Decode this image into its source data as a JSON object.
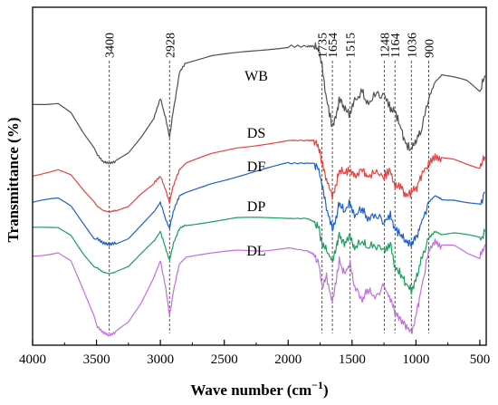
{
  "chart_data": {
    "type": "line",
    "title": "",
    "xlabel": "Wave number (cm⁻¹)",
    "xlabel_main": "Wave number (cm",
    "xlabel_sup": "−1",
    "xlabel_close": ")",
    "ylabel": "Transmittance (%)",
    "xlim": [
      4000,
      450
    ],
    "x_reversed": true,
    "y_ticks_shown": false,
    "grid": false,
    "legend": "inline labels",
    "x_ticks": [
      4000,
      3500,
      3000,
      2500,
      2000,
      1500,
      1000,
      500
    ],
    "x_tick_labels": [
      "4000",
      "3500",
      "3000",
      "2500",
      "2000",
      "1500",
      "1000",
      "500"
    ],
    "peak_markers": [
      {
        "x": 3400,
        "label": "3400"
      },
      {
        "x": 2928,
        "label": "2928"
      },
      {
        "x": 1735,
        "label": "1735"
      },
      {
        "x": 1654,
        "label": "1654"
      },
      {
        "x": 1515,
        "label": "1515"
      },
      {
        "x": 1248,
        "label": "1248"
      },
      {
        "x": 1164,
        "label": "1164"
      },
      {
        "x": 1036,
        "label": "1036"
      },
      {
        "x": 900,
        "label": "900"
      }
    ],
    "series": [
      {
        "name": "WB",
        "color": "#505050",
        "x": [
          4000,
          3800,
          3700,
          3600,
          3500,
          3450,
          3400,
          3350,
          3250,
          3150,
          3050,
          3000,
          2960,
          2928,
          2900,
          2870,
          2850,
          2800,
          2600,
          2400,
          2200,
          2000,
          1850,
          1800,
          1760,
          1735,
          1700,
          1654,
          1620,
          1600,
          1560,
          1515,
          1480,
          1420,
          1380,
          1320,
          1248,
          1200,
          1164,
          1120,
          1080,
          1036,
          1000,
          960,
          900,
          850,
          800,
          700,
          600,
          500,
          460
        ],
        "y": [
          70,
          71,
          68,
          61,
          55,
          52.5,
          52,
          52.5,
          55,
          60,
          66,
          72,
          66,
          60,
          68,
          75,
          80,
          83,
          85,
          86,
          87,
          88,
          88,
          88,
          87,
          82,
          72,
          63,
          67,
          72,
          69,
          67,
          71,
          74,
          70,
          73,
          73,
          69,
          68,
          63,
          58,
          56,
          59,
          62,
          72,
          77,
          79,
          78,
          77,
          74,
          79
        ]
      },
      {
        "name": "DS",
        "color": "#e5413f",
        "x": [
          4000,
          3800,
          3700,
          3600,
          3500,
          3450,
          3400,
          3350,
          3250,
          3150,
          3050,
          3000,
          2960,
          2928,
          2900,
          2870,
          2850,
          2800,
          2600,
          2400,
          2200,
          2000,
          1850,
          1800,
          1760,
          1735,
          1700,
          1654,
          1620,
          1600,
          1560,
          1515,
          1480,
          1420,
          1380,
          1320,
          1248,
          1200,
          1164,
          1120,
          1080,
          1036,
          1000,
          960,
          900,
          850,
          800,
          700,
          600,
          500,
          460
        ],
        "y": [
          49,
          50,
          48,
          43,
          39,
          37.5,
          37,
          37.5,
          39,
          43,
          46,
          48,
          44,
          40,
          45,
          48,
          50,
          52,
          55,
          57,
          58,
          59,
          59,
          59,
          57,
          52,
          47,
          42,
          46,
          50,
          49,
          50,
          48,
          50,
          48,
          49,
          48,
          50,
          45,
          45,
          42,
          43,
          44,
          48,
          52,
          54,
          53,
          53,
          52,
          51,
          54
        ]
      },
      {
        "name": "DF",
        "color": "#1f5fc9",
        "x": [
          4000,
          3800,
          3700,
          3600,
          3500,
          3450,
          3400,
          3350,
          3250,
          3150,
          3050,
          3000,
          2960,
          2928,
          2900,
          2870,
          2850,
          2800,
          2600,
          2400,
          2200,
          2000,
          1850,
          1800,
          1760,
          1735,
          1700,
          1654,
          1620,
          1600,
          1560,
          1515,
          1480,
          1420,
          1380,
          1320,
          1248,
          1200,
          1164,
          1120,
          1080,
          1036,
          1000,
          960,
          900,
          850,
          800,
          700,
          600,
          500,
          460
        ],
        "y": [
          40,
          41,
          39,
          34,
          29,
          27.5,
          27,
          27.5,
          29,
          33,
          37,
          40,
          35,
          32,
          37,
          40,
          42,
          43,
          46,
          48,
          50,
          52,
          52,
          52,
          50,
          45,
          38,
          32,
          36,
          40,
          37,
          40,
          36,
          38,
          35,
          36,
          34,
          36,
          32,
          30,
          28,
          27,
          29,
          33,
          40,
          42,
          41,
          41,
          40,
          39,
          43
        ]
      },
      {
        "name": "DP",
        "color": "#18a05a",
        "x": [
          4000,
          3800,
          3700,
          3600,
          3500,
          3450,
          3400,
          3350,
          3250,
          3150,
          3050,
          3000,
          2960,
          2928,
          2900,
          2870,
          2850,
          2800,
          2600,
          2400,
          2200,
          2000,
          1850,
          1800,
          1760,
          1735,
          1700,
          1654,
          1620,
          1600,
          1560,
          1515,
          1480,
          1420,
          1380,
          1320,
          1248,
          1200,
          1164,
          1120,
          1080,
          1036,
          1000,
          960,
          900,
          850,
          800,
          700,
          600,
          500,
          460
        ],
        "y": [
          32,
          33,
          31,
          25,
          20,
          18.5,
          18,
          18.5,
          20,
          24,
          28,
          31,
          26,
          22,
          27,
          30,
          32,
          33,
          34,
          35,
          35,
          35,
          35,
          34,
          32,
          27,
          25,
          22,
          27,
          30,
          27,
          30,
          26,
          28,
          26,
          27,
          25,
          27,
          20,
          18,
          15,
          13,
          16,
          22,
          29,
          31,
          30,
          30,
          29,
          28,
          31
        ]
      },
      {
        "name": "DL",
        "color": "#c46fe0",
        "x": [
          4000,
          3800,
          3700,
          3600,
          3500,
          3450,
          3400,
          3350,
          3250,
          3150,
          3050,
          3000,
          2960,
          2928,
          2900,
          2870,
          2850,
          2800,
          2600,
          2400,
          2200,
          2000,
          1850,
          1800,
          1760,
          1735,
          1700,
          1654,
          1620,
          1600,
          1560,
          1515,
          1480,
          1420,
          1380,
          1320,
          1248,
          1200,
          1164,
          1120,
          1080,
          1036,
          1000,
          960,
          900,
          850,
          800,
          700,
          600,
          500,
          460
        ],
        "y": [
          24,
          25,
          22,
          12,
          2,
          0,
          -1,
          0,
          3,
          9,
          17,
          22,
          14,
          5,
          12,
          18,
          21,
          23,
          24,
          25,
          25,
          26,
          25,
          24,
          21,
          14,
          17,
          9,
          17,
          22,
          18,
          21,
          14,
          10,
          13,
          11,
          14,
          10,
          6,
          4,
          2,
          0,
          5,
          13,
          25,
          28,
          26,
          26,
          24,
          23,
          27
        ]
      }
    ]
  }
}
